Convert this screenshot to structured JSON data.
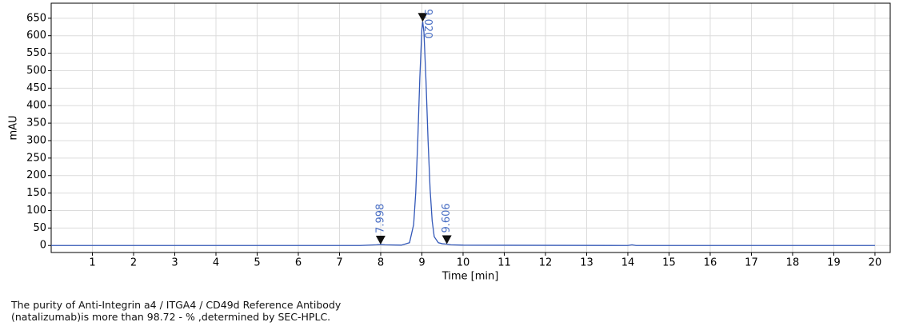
{
  "chart_data": {
    "type": "line",
    "xlabel": "Time [min]",
    "ylabel": "mAU",
    "x": [
      0,
      7.5,
      7.9,
      8.0,
      8.1,
      8.5,
      8.7,
      8.8,
      8.85,
      8.9,
      8.95,
      9.0,
      9.02,
      9.05,
      9.1,
      9.15,
      9.2,
      9.25,
      9.3,
      9.4,
      9.5,
      9.6,
      9.7,
      10,
      14,
      14.1,
      14.2,
      20
    ],
    "series": [
      {
        "color": "#3358b8",
        "values": [
          0,
          0,
          2,
          3,
          2,
          1,
          8,
          60,
          150,
          300,
          480,
          620,
          640,
          610,
          470,
          300,
          160,
          70,
          25,
          8,
          5,
          4,
          2,
          1,
          0,
          2,
          0,
          0
        ]
      }
    ],
    "annotations": [
      {
        "x": 7.998,
        "label": "7.998"
      },
      {
        "x": 9.02,
        "label": "9.020"
      },
      {
        "x": 9.606,
        "label": "9.606"
      }
    ],
    "annotation_color": "#4a6fc4",
    "xlim": [
      0,
      20.37
    ],
    "ylim": [
      -20,
      693
    ],
    "xticks": [
      1,
      2,
      3,
      4,
      5,
      6,
      7,
      8,
      9,
      10,
      11,
      12,
      13,
      14,
      15,
      16,
      17,
      18,
      19,
      20
    ],
    "yticks": [
      0,
      50,
      100,
      150,
      200,
      250,
      300,
      350,
      400,
      450,
      500,
      550,
      600,
      650
    ],
    "grid": true
  },
  "caption": [
    "The purity of Anti-Integrin a4 / ITGA4 / CD49d Reference Antibody",
    "(natalizumab)is more than 98.72 - % ,determined by SEC-HPLC."
  ]
}
